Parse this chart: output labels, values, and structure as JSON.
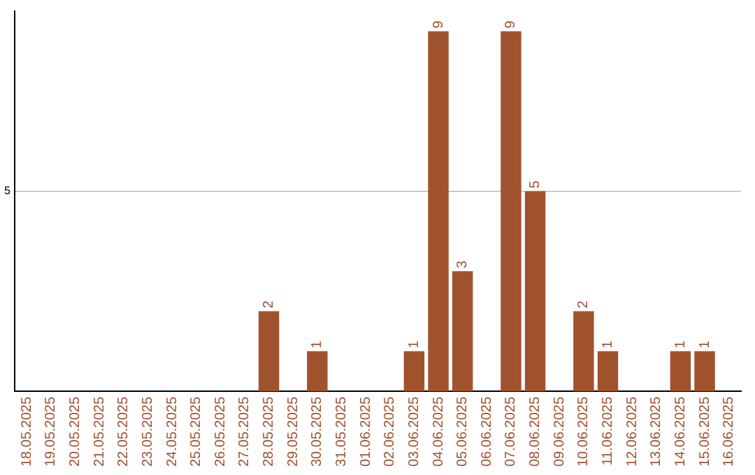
{
  "chart_data": {
    "type": "bar",
    "categories": [
      "18.05.2025",
      "19.05.2025",
      "20.05.2025",
      "21.05.2025",
      "22.05.2025",
      "23.05.2025",
      "24.05.2025",
      "25.05.2025",
      "26.05.2025",
      "27.05.2025",
      "28.05.2025",
      "29.05.2025",
      "30.05.2025",
      "31.05.2025",
      "01.06.2025",
      "02.06.2025",
      "03.06.2025",
      "04.06.2025",
      "05.06.2025",
      "06.06.2025",
      "07.06.2025",
      "08.06.2025",
      "09.06.2025",
      "10.06.2025",
      "11.06.2025",
      "12.06.2025",
      "13.06.2025",
      "14.06.2025",
      "15.06.2025",
      "16.06.2025"
    ],
    "values": [
      0,
      0,
      0,
      0,
      0,
      0,
      0,
      0,
      0,
      0,
      2,
      0,
      1,
      0,
      0,
      0,
      1,
      9,
      3,
      0,
      9,
      5,
      0,
      2,
      1,
      0,
      0,
      1,
      1,
      0
    ],
    "value_labels": [
      null,
      null,
      null,
      null,
      null,
      null,
      null,
      null,
      null,
      null,
      "2",
      null,
      "1",
      null,
      null,
      null,
      "1",
      "9",
      "3",
      null,
      "9",
      "5",
      null,
      "2",
      "1",
      null,
      null,
      "1",
      "1",
      null
    ],
    "color": "#a0522d",
    "ylim": [
      0,
      9.5
    ],
    "yticks": [
      5
    ],
    "grid": "y"
  }
}
